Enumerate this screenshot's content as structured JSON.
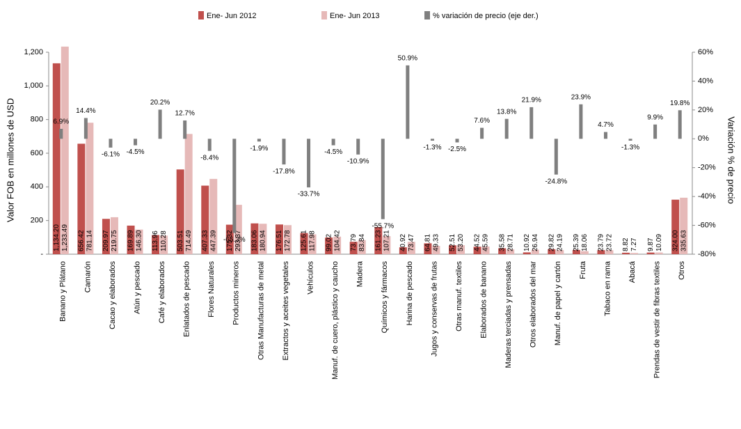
{
  "chart_data": {
    "type": "bar",
    "y_label": "Valor FOB en millones de USD",
    "y2_label": "Variación % de precio",
    "categories": [
      "Banano y Plátano",
      "Camarón",
      "Cacao y elaborados",
      "Atún y pescado",
      "Café y elaborados",
      "Enlatados de pescado",
      "Flores Naturales",
      "Productos mineros",
      "Otras Manufacturas de metal",
      "Extractos y aceites vegetales",
      "Vehículos",
      "Manuf. de cuero, plástico y caucho",
      "Madera",
      "Químicos y fármacos",
      "Harina de pescado",
      "Jugos y conservas de frutas",
      "Otras manuf. textiles",
      "Elaborados de banano",
      "Maderas terciadas y prensadas",
      "Otros elaborados del mar",
      "Manuf. de papel y cartón",
      "Fruta",
      "Tabaco en rama",
      "Abacá",
      "Prendas de vestir de fibras textiles",
      "Otros"
    ],
    "series": [
      {
        "name": "Ene- Jun 2012",
        "color": "#c0504d",
        "values": [
          1134.2,
          656.42,
          209.97,
          169.89,
          113.96,
          503.51,
          407.33,
          175.32,
          183.06,
          176.51,
          125.61,
          99.02,
          73.79,
          161.23,
          40.92,
          64.81,
          52.51,
          44.52,
          35.58,
          10.92,
          29.82,
          25.39,
          23.79,
          8.82,
          9.87,
          324.0
        ],
        "value_labels": [
          "1,134.20",
          "656.42",
          "209.97",
          "169.89",
          "113.96",
          "503.51",
          "407.33",
          "175.32",
          "183.06",
          "176.51",
          "125.61",
          "99.02",
          "73.79",
          "161.23",
          "40.92",
          "64.81",
          "52.51",
          "44.52",
          "35.58",
          "10.92",
          "29.82",
          "25.39",
          "23.79",
          "8.82",
          "9.87",
          "324.00"
        ]
      },
      {
        "name": "Ene- Jun 2013",
        "color": "#e6b9b8",
        "values": [
          1233.49,
          781.14,
          219.75,
          146.3,
          110.28,
          714.49,
          447.39,
          293.37,
          180.94,
          172.78,
          117.98,
          104.42,
          83.84,
          107.21,
          73.47,
          49.33,
          53.2,
          45.59,
          28.71,
          26.94,
          24.19,
          18.06,
          23.72,
          7.27,
          10.09,
          335.63
        ],
        "value_labels": [
          "1,233.49",
          "781.14",
          "219.75",
          "146.30",
          "110.28",
          "714.49",
          "447.39",
          "293.37",
          "180.94",
          "172.78",
          "117.98",
          "104.42",
          "83.84",
          "107.21",
          "73.47",
          "49.33",
          "53.20",
          "45.59",
          "28.71",
          "26.94",
          "24.19",
          "18.06",
          "23.72",
          "7.27",
          "10.09",
          "335.63"
        ]
      },
      {
        "name": "% variación de precio (eje der.)",
        "color": "#7f7f7f",
        "axis": "y2",
        "values": [
          6.9,
          14.4,
          -6.1,
          -4.5,
          20.2,
          12.7,
          -8.4,
          -65.3,
          -1.9,
          -17.8,
          -33.7,
          -4.5,
          -10.9,
          -55.7,
          50.9,
          -1.3,
          -2.5,
          7.6,
          13.8,
          21.9,
          -24.8,
          23.9,
          4.7,
          -1.3,
          9.9,
          19.8
        ],
        "value_labels": [
          "6.9%",
          "14.4%",
          "-6.1%",
          "-4.5%",
          "20.2%",
          "12.7%",
          "-8.4%",
          "-65.3%",
          "-1.9%",
          "-17.8%",
          "-33.7%",
          "-4.5%",
          "-10.9%",
          "-55.7%",
          "50.9%",
          "-1.3%",
          "-2.5%",
          "7.6%",
          "13.8%",
          "21.9%",
          "-24.8%",
          "23.9%",
          "4.7%",
          "-1.3%",
          "9.9%",
          "19.8%"
        ]
      }
    ],
    "ylim": [
      0,
      1200
    ],
    "yticks": [
      {
        "value": 0,
        "label": "-"
      },
      200,
      400,
      600,
      800,
      {
        "value": 1000,
        "label": "1,000"
      },
      {
        "value": 1200,
        "label": "1,200"
      }
    ],
    "y2lim": [
      -80,
      60
    ],
    "y2ticks": [
      {
        "value": -80,
        "label": "-80%"
      },
      {
        "value": -60,
        "label": "-60%"
      },
      {
        "value": -40,
        "label": "-40%"
      },
      {
        "value": -20,
        "label": "-20%"
      },
      {
        "value": 0,
        "label": "0%"
      },
      {
        "value": 20,
        "label": "20%"
      },
      {
        "value": 40,
        "label": "40%"
      },
      {
        "value": 60,
        "label": "60%"
      }
    ],
    "legend": "top"
  }
}
